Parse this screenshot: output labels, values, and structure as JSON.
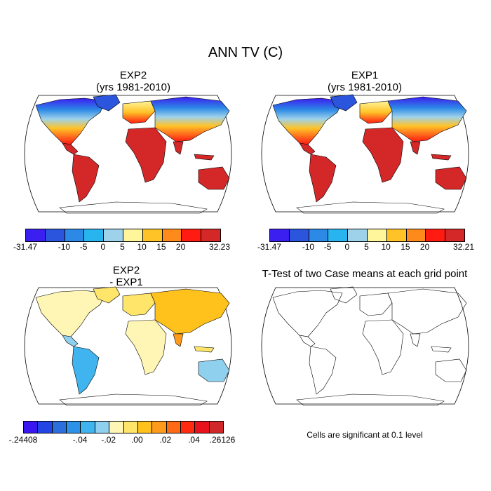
{
  "title": "ANN TV (C)",
  "panels": {
    "exp2": {
      "title": "EXP2",
      "subtitle": "(yrs 1981-2010)"
    },
    "exp1": {
      "title": "EXP1",
      "subtitle": "(yrs 1981-2010)"
    },
    "diff": {
      "title": "EXP2",
      "subtitle": "- EXP1"
    },
    "ttest": {
      "title": "T-Test of two Case means at each grid point",
      "note": "Cells are significant at 0.1 level"
    }
  },
  "colorbars": {
    "temp_colors": [
      "#3b1ef0",
      "#2b55dc",
      "#2c8ae6",
      "#28b4ee",
      "#9ed2ea",
      "#fff59a",
      "#ffc327",
      "#ff8a1c",
      "#ff1a12",
      "#d42828"
    ],
    "exp2_labels": [
      "-31.47",
      "-10",
      "-5",
      "0",
      "5",
      "10",
      "15",
      "20",
      "32.23"
    ],
    "exp1_labels": [
      "-31.47",
      "-10",
      "-5",
      "0",
      "5",
      "10",
      "15",
      "20",
      "32.21"
    ],
    "diff_colors": [
      "#3a17f0",
      "#2345e6",
      "#2b6fdc",
      "#2c92e8",
      "#40b4ef",
      "#8fd0ee",
      "#fff6b5",
      "#ffe56a",
      "#ffc21c",
      "#ff9b1a",
      "#ff6a14",
      "#ff2a10",
      "#e8121c",
      "#d0282a"
    ],
    "diff_labels": [
      "-.24408",
      "-.04",
      "-.02",
      ".00",
      ".02",
      ".04",
      ".26126"
    ]
  }
}
